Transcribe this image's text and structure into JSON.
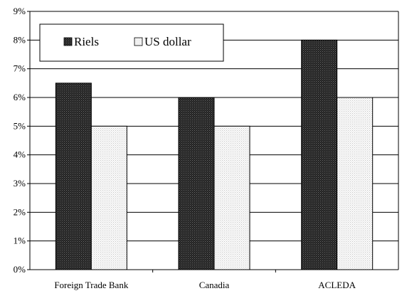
{
  "chart_data": {
    "type": "bar",
    "categories": [
      "Foreign Trade Bank",
      "Canadia",
      "ACLEDA"
    ],
    "series": [
      {
        "name": "Riels",
        "values": [
          6.5,
          6.0,
          8.0
        ],
        "color": "#2b2b2b",
        "pattern": "dark-dots"
      },
      {
        "name": "US dollar",
        "values": [
          5.0,
          5.0,
          6.0
        ],
        "color": "#f4f4f4",
        "pattern": "light-dots"
      }
    ],
    "ylim": [
      0,
      9
    ],
    "yticks": [
      "0%",
      "1%",
      "2%",
      "3%",
      "4%",
      "5%",
      "6%",
      "7%",
      "8%",
      "9%"
    ],
    "y_unit": "%",
    "grid": true,
    "legend": "top-left"
  }
}
